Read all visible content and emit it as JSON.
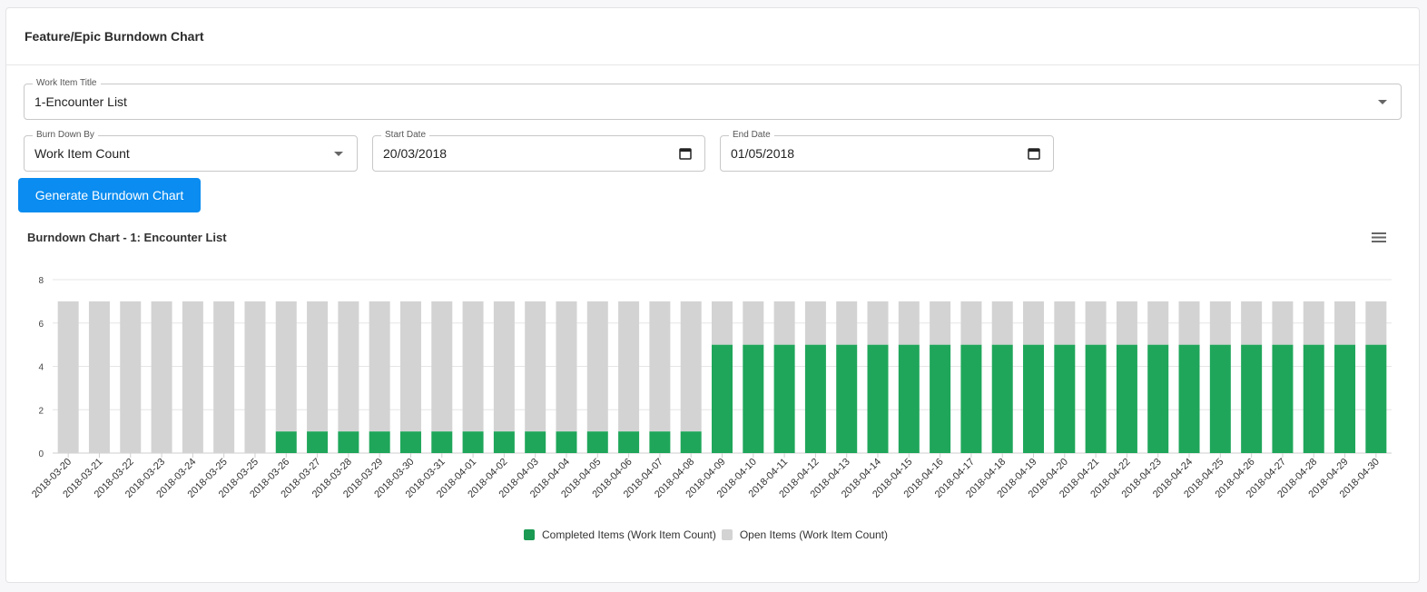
{
  "page": {
    "title": "Feature/Epic Burndown Chart"
  },
  "form": {
    "work_item": {
      "label": "Work Item Title",
      "value": "1-Encounter List"
    },
    "burn_down_by": {
      "label": "Burn Down By",
      "value": "Work Item Count"
    },
    "start_date": {
      "label": "Start Date",
      "value": "20/03/2018"
    },
    "end_date": {
      "label": "End Date",
      "value": "01/05/2018"
    },
    "generate_label": "Generate Burndown Chart"
  },
  "colors": {
    "completed": "#1fa65a",
    "open": "#d3d3d3",
    "button": "#0a8cf0"
  },
  "chart_data": {
    "type": "bar",
    "stacked": true,
    "title": "Burndown Chart - 1: Encounter List",
    "xlabel": "",
    "ylabel": "",
    "ylim": [
      0,
      8
    ],
    "yticks": [
      0,
      2,
      4,
      6,
      8
    ],
    "grid": true,
    "legend_position": "bottom",
    "categories": [
      "2018-03-20",
      "2018-03-21",
      "2018-03-22",
      "2018-03-23",
      "2018-03-24",
      "2018-03-25",
      "2018-03-25",
      "2018-03-26",
      "2018-03-27",
      "2018-03-28",
      "2018-03-29",
      "2018-03-30",
      "2018-03-31",
      "2018-04-01",
      "2018-04-02",
      "2018-04-03",
      "2018-04-04",
      "2018-04-05",
      "2018-04-06",
      "2018-04-07",
      "2018-04-08",
      "2018-04-09",
      "2018-04-10",
      "2018-04-11",
      "2018-04-12",
      "2018-04-13",
      "2018-04-14",
      "2018-04-15",
      "2018-04-16",
      "2018-04-17",
      "2018-04-18",
      "2018-04-19",
      "2018-04-20",
      "2018-04-21",
      "2018-04-22",
      "2018-04-23",
      "2018-04-24",
      "2018-04-25",
      "2018-04-26",
      "2018-04-27",
      "2018-04-28",
      "2018-04-29",
      "2018-04-30"
    ],
    "series": [
      {
        "name": "Completed Items (Work Item Count)",
        "color": "#1fa65a",
        "values": [
          0,
          0,
          0,
          0,
          0,
          0,
          0,
          1,
          1,
          1,
          1,
          1,
          1,
          1,
          1,
          1,
          1,
          1,
          1,
          1,
          1,
          5,
          5,
          5,
          5,
          5,
          5,
          5,
          5,
          5,
          5,
          5,
          5,
          5,
          5,
          5,
          5,
          5,
          5,
          5,
          5,
          5,
          5
        ]
      },
      {
        "name": "Open Items (Work Item Count)",
        "color": "#d3d3d3",
        "values": [
          7,
          7,
          7,
          7,
          7,
          7,
          7,
          6,
          6,
          6,
          6,
          6,
          6,
          6,
          6,
          6,
          6,
          6,
          6,
          6,
          6,
          2,
          2,
          2,
          2,
          2,
          2,
          2,
          2,
          2,
          2,
          2,
          2,
          2,
          2,
          2,
          2,
          2,
          2,
          2,
          2,
          2,
          2
        ]
      }
    ]
  }
}
